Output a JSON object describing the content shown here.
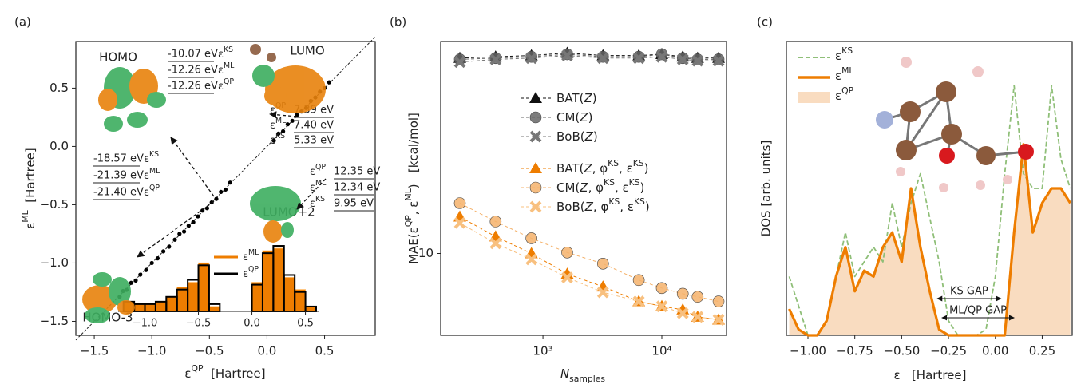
{
  "chart_data": [
    {
      "type": "scatter",
      "panel_label": "(a)",
      "x_label": [
        "ε",
        {
          "sup": "QP"
        },
        "  [Hartree]"
      ],
      "y_label": [
        "ε",
        {
          "sup": "ML"
        },
        "  [Hartree]"
      ],
      "xlim": [
        -1.66,
        0.94
      ],
      "ylim": [
        -1.62,
        0.9
      ],
      "xticks": [
        {
          "value": -1.5,
          "label": "−1.5"
        },
        {
          "value": -1,
          "label": "−1.0"
        },
        {
          "value": -0.5,
          "label": "−0.5"
        },
        {
          "value": 0,
          "label": "0.0"
        },
        {
          "value": 0.5,
          "label": "0.5"
        }
      ],
      "yticks": [
        {
          "value": -1.5,
          "label": "−1.5"
        },
        {
          "value": -1,
          "label": "−1.0"
        },
        {
          "value": -0.5,
          "label": "−0.5"
        },
        {
          "value": 0,
          "label": "0.0"
        },
        {
          "value": 0.5,
          "label": "0.5"
        }
      ],
      "diagonal": true,
      "color": "#000000",
      "x": [
        -1.28,
        -1.25,
        -1.22,
        -1.18,
        -1.14,
        -1.1,
        -1.05,
        -1.0,
        -0.95,
        -0.9,
        -0.85,
        -0.8,
        -0.76,
        -0.72,
        -0.68,
        -0.64,
        -0.6,
        -0.56,
        -0.52,
        -0.48,
        -0.44,
        -0.4,
        -0.36,
        -0.32,
        0.06,
        0.1,
        0.14,
        0.18,
        0.22,
        0.26,
        0.3,
        0.34,
        0.38,
        0.42,
        0.46,
        0.5,
        0.54
      ],
      "values": [
        -1.29,
        -1.24,
        -1.23,
        -1.17,
        -1.15,
        -1.1,
        -1.06,
        -1.0,
        -0.96,
        -0.9,
        -0.86,
        -0.8,
        -0.75,
        -0.73,
        -0.68,
        -0.65,
        -0.6,
        -0.55,
        -0.53,
        -0.48,
        -0.45,
        -0.39,
        -0.37,
        -0.31,
        0.05,
        0.11,
        0.13,
        0.19,
        0.22,
        0.27,
        0.3,
        0.33,
        0.39,
        0.42,
        0.47,
        0.5,
        0.55
      ],
      "annotations": [
        {
          "label": "HOMO",
          "symbol_first": false,
          "energies": [
            {
              "value": "-10.07 eV",
              "symbol": [
                "ε",
                {
                  "sup": "KS"
                }
              ]
            },
            {
              "value": "-12.26 eV",
              "symbol": [
                "ε",
                {
                  "sup": "ML"
                }
              ]
            },
            {
              "value": "-12.26 eV",
              "symbol": [
                "ε",
                {
                  "sup": "QP"
                }
              ]
            }
          ]
        },
        {
          "label": "LUMO",
          "symbol_first": true,
          "energies": [
            {
              "value": "7.39 eV",
              "symbol": [
                "ε",
                {
                  "sup": "QP"
                }
              ]
            },
            {
              "value": "7.40 eV",
              "symbol": [
                "ε",
                {
                  "sup": "ML"
                }
              ]
            },
            {
              "value": "5.33 eV",
              "symbol": [
                "ε",
                {
                  "sup": "KS"
                }
              ]
            }
          ]
        },
        {
          "label": "HOMO-3",
          "symbol_first": false,
          "energies": [
            {
              "value": "-18.57 eV",
              "symbol": [
                "ε",
                {
                  "sup": "KS"
                }
              ]
            },
            {
              "value": "-21.39 eV",
              "symbol": [
                "ε",
                {
                  "sup": "ML"
                }
              ]
            },
            {
              "value": "-21.40 eV",
              "symbol": [
                "ε",
                {
                  "sup": "QP"
                }
              ]
            }
          ]
        },
        {
          "label": "LUMO+2",
          "symbol_first": true,
          "energies": [
            {
              "value": "12.35 eV",
              "symbol": [
                "ε",
                {
                  "sup": "QP"
                }
              ]
            },
            {
              "value": "12.34 eV",
              "symbol": [
                "ε",
                {
                  "sup": "ML"
                }
              ]
            },
            {
              "value": "9.95 eV",
              "symbol": [
                "ε",
                {
                  "sup": "KS"
                }
              ]
            }
          ]
        }
      ]
    },
    {
      "type": "histogram",
      "xlim": [
        -1.25,
        0.63
      ],
      "ylim": [
        0,
        28
      ],
      "xticks": [
        {
          "value": -1,
          "label": "−1.0"
        },
        {
          "value": -0.5,
          "label": "−0.5"
        },
        {
          "value": 0,
          "label": "0.0"
        },
        {
          "value": 0.5,
          "label": "0.5"
        }
      ],
      "bins": [
        -1.2,
        -1.1,
        -1.0,
        -0.9,
        -0.8,
        -0.7,
        -0.6,
        -0.5,
        -0.4,
        -0.3,
        -0.2,
        -0.1,
        0,
        0.1,
        0.2,
        0.3,
        0.4,
        0.5,
        0.6
      ],
      "series": [
        {
          "name": [
            "ε",
            {
              "sup": "ML"
            }
          ],
          "color": "#ee7d00",
          "style": "filled",
          "values": [
            4,
            3,
            3,
            4,
            6,
            10,
            12,
            20,
            2,
            0,
            0,
            0,
            12,
            25,
            26,
            14,
            9,
            2
          ]
        },
        {
          "name": [
            "ε",
            {
              "sup": "QP"
            }
          ],
          "color": "#000000",
          "style": "step",
          "values": [
            4,
            3,
            3,
            4,
            6,
            9,
            13,
            19,
            3,
            0,
            0,
            0,
            11,
            24,
            27,
            15,
            8,
            2
          ]
        }
      ]
    },
    {
      "type": "line",
      "panel_label": "(b)",
      "xscale": "log",
      "yscale": "log",
      "x_label": [
        {
          "it": "N"
        },
        {
          "sub": "samples"
        }
      ],
      "y_label": [
        "MAE(ε",
        {
          "sup": "QP"
        },
        ", ε",
        {
          "sup": "ML"
        },
        ")   [kcal/mol]"
      ],
      "xlim": [
        138,
        35000
      ],
      "ylim": [
        4.3,
        89
      ],
      "xticks": [
        {
          "value": 1000,
          "label": "10³"
        },
        {
          "value": 10000,
          "label": "10⁴"
        }
      ],
      "yticks": [
        10
      ],
      "x": [
        200,
        400,
        800,
        1600,
        3200,
        6400,
        10000,
        15000,
        20000,
        30000
      ],
      "series": [
        {
          "name": [
            "BAT(",
            {
              "it": "Z"
            },
            ")"
          ],
          "color": "#111111",
          "marker": "triangle",
          "values": [
            75,
            76,
            77,
            79,
            77,
            77,
            78,
            76,
            75,
            75
          ]
        },
        {
          "name": [
            "CM(",
            {
              "it": "Z"
            },
            ")"
          ],
          "color": "#666666",
          "marker": "circle",
          "values": [
            74,
            75,
            76,
            78,
            76,
            76,
            78,
            75,
            74,
            74
          ]
        },
        {
          "name": [
            "BoB(",
            {
              "it": "Z"
            },
            ")"
          ],
          "color": "#777777",
          "marker": "x",
          "values": [
            72,
            74,
            75,
            77,
            75,
            75,
            76,
            74,
            73,
            73
          ]
        },
        {
          "name": [
            "BAT(",
            {
              "it": "Z"
            },
            ", φ",
            {
              "sup": "KS"
            },
            ", ε",
            {
              "sup": "KS"
            },
            ")"
          ],
          "color": "#ee7d00",
          "marker": "triangle",
          "values": [
            14.6,
            11.9,
            10,
            8.1,
            7.1,
            6.1,
            5.8,
            5.6,
            5.2,
            5.05
          ]
        },
        {
          "name": [
            "CM(",
            {
              "it": "Z"
            },
            ", φ",
            {
              "sup": "KS"
            },
            ", ε",
            {
              "sup": "KS"
            },
            ")"
          ],
          "color": "#f5b26b",
          "marker": "circle",
          "values": [
            16.8,
            13.9,
            11.7,
            10.1,
            9.0,
            7.6,
            7.0,
            6.6,
            6.4,
            6.1
          ]
        },
        {
          "name": [
            "BoB(",
            {
              "it": "Z"
            },
            ", φ",
            {
              "sup": "KS"
            },
            ", ε",
            {
              "sup": "KS"
            },
            ")"
          ],
          "color": "#f8c07f",
          "marker": "x",
          "values": [
            13.7,
            11.1,
            9.4,
            7.8,
            6.7,
            6.1,
            5.8,
            5.4,
            5.2,
            5.05
          ]
        }
      ]
    },
    {
      "type": "line",
      "panel_label": "(c)",
      "x_label": [
        "ε",
        "   [Hartree]"
      ],
      "y_label": "DOS [arb. units]",
      "xlim": [
        -1.115,
        0.41
      ],
      "ylim": [
        0,
        1
      ],
      "xticks": [
        {
          "value": -1,
          "label": "−1.00"
        },
        {
          "value": -0.75,
          "label": "−0.75"
        },
        {
          "value": -0.5,
          "label": "−0.50"
        },
        {
          "value": -0.25,
          "label": "−0.25"
        },
        {
          "value": 0,
          "label": "0.00"
        },
        {
          "value": 0.25,
          "label": "0.25"
        }
      ],
      "x": [
        -1.1,
        -1.05,
        -1.0,
        -0.95,
        -0.9,
        -0.85,
        -0.8,
        -0.75,
        -0.7,
        -0.65,
        -0.6,
        -0.55,
        -0.5,
        -0.45,
        -0.4,
        -0.35,
        -0.3,
        -0.25,
        -0.2,
        -0.15,
        -0.1,
        -0.05,
        0,
        0.05,
        0.1,
        0.15,
        0.2,
        0.25,
        0.3,
        0.35,
        0.4
      ],
      "series": [
        {
          "name": [
            "ε",
            {
              "sup": "KS"
            }
          ],
          "color": "#8fbf78",
          "style": "dashed",
          "values": [
            0.2,
            0.1,
            0,
            0,
            0.05,
            0.2,
            0.35,
            0.2,
            0.25,
            0.3,
            0.25,
            0.45,
            0.3,
            0.45,
            0.55,
            0.4,
            0.25,
            0.05,
            0,
            0,
            0,
            0.02,
            0.2,
            0.55,
            0.85,
            0.55,
            0.5,
            0.5,
            0.85,
            0.6,
            0.5
          ]
        },
        {
          "name": [
            "ε",
            {
              "sup": "ML"
            }
          ],
          "color": "#ee7d00",
          "style": "solid",
          "values": [
            0.09,
            0.02,
            0,
            0,
            0.05,
            0.2,
            0.3,
            0.15,
            0.22,
            0.2,
            0.3,
            0.35,
            0.25,
            0.5,
            0.3,
            0.15,
            0.02,
            0,
            0,
            0,
            0,
            0,
            0,
            0,
            0.35,
            0.65,
            0.35,
            0.45,
            0.5,
            0.5,
            0.45
          ]
        },
        {
          "name": [
            "ε",
            {
              "sup": "QP"
            }
          ],
          "color": "#f9dcc0",
          "style": "fill",
          "values": [
            0.09,
            0.02,
            0,
            0,
            0.05,
            0.2,
            0.3,
            0.15,
            0.22,
            0.2,
            0.3,
            0.35,
            0.25,
            0.5,
            0.3,
            0.15,
            0.02,
            0,
            0,
            0,
            0,
            0,
            0,
            0,
            0.35,
            0.65,
            0.35,
            0.45,
            0.5,
            0.5,
            0.45
          ]
        }
      ],
      "annotations": [
        {
          "text": "KS GAP",
          "x": [
            -0.31,
            0.03
          ]
        },
        {
          "text": "ML/QP GAP",
          "x": [
            -0.285,
            0.1
          ]
        }
      ]
    }
  ]
}
